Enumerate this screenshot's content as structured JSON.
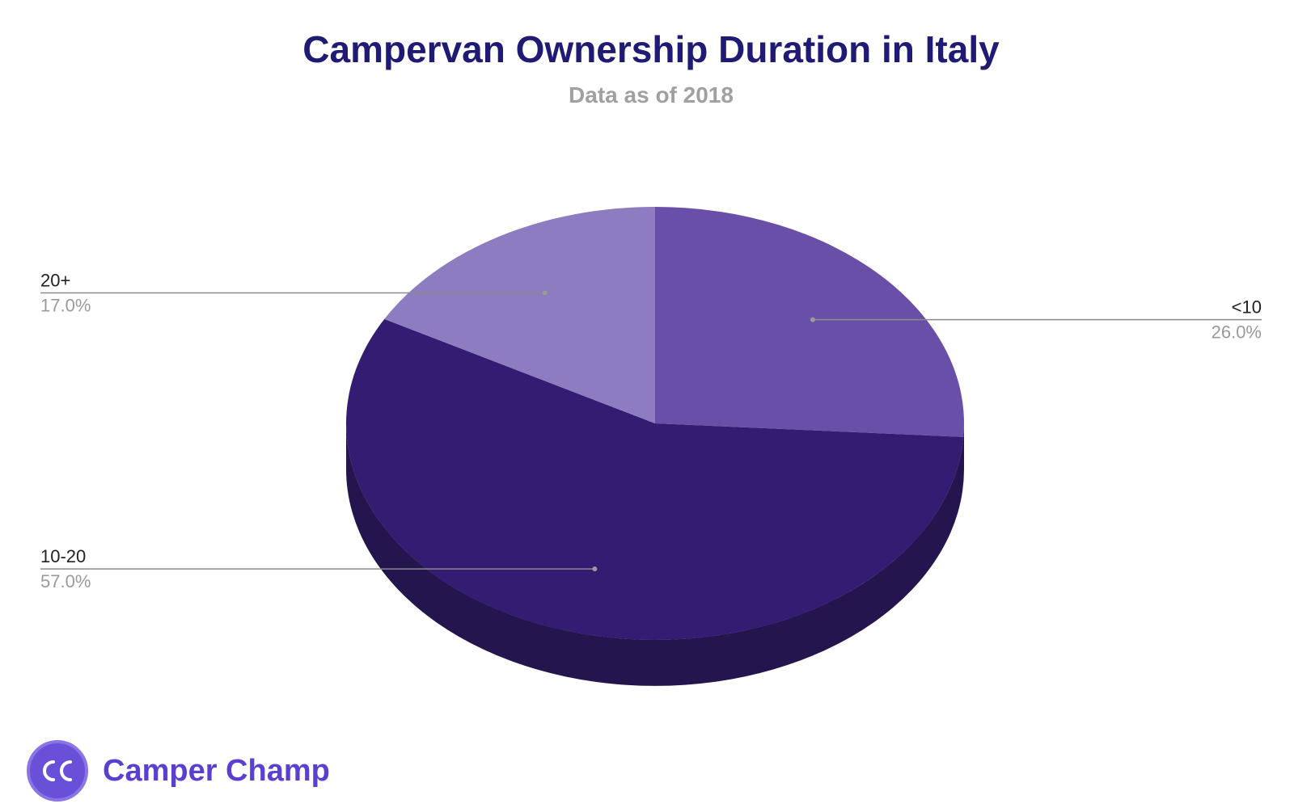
{
  "chart_data": {
    "type": "pie",
    "title": "Campervan Ownership Duration in Italy",
    "subtitle": "Data as of 2018",
    "slices": [
      {
        "label": "<10",
        "value": 26.0,
        "display": "26.0%",
        "color": "#6a4fa8"
      },
      {
        "label": "10-20",
        "value": 57.0,
        "display": "57.0%",
        "color": "#351c73"
      },
      {
        "label": "20+",
        "value": 17.0,
        "display": "17.0%",
        "color": "#8d7cc0"
      }
    ],
    "three_d": true,
    "legend": "none"
  },
  "brand": {
    "name": "Camper Champ",
    "logo_text": "CC",
    "color": "#5b3fd1"
  }
}
